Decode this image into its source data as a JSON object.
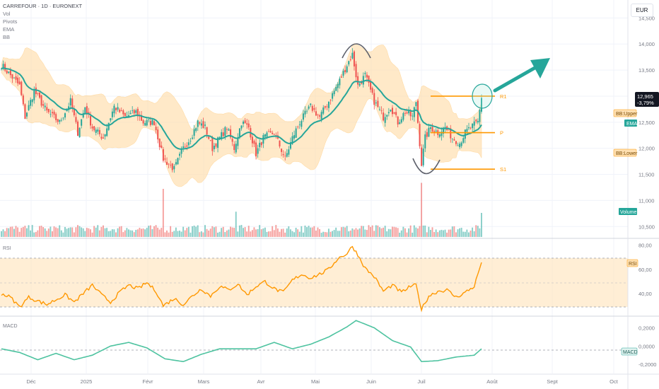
{
  "header": {
    "title": "CARREFOUR · 1D · EURONEXT",
    "indicators": [
      "Vol",
      "Pivots",
      "EMA",
      "BB"
    ],
    "currency": "EUR"
  },
  "price_label": {
    "price": "12,965",
    "change": "-3,79%"
  },
  "badges": {
    "bb_upper": "BB:Upper",
    "ema": "EMA",
    "bb_lower": "BB:Lower",
    "volume": "Volume",
    "rsi": "RSI",
    "macd": "MACD"
  },
  "panes": {
    "rsi_title": "RSI",
    "macd_title": "MACD"
  },
  "pivots": [
    {
      "label": "R1",
      "value": 13.0
    },
    {
      "label": "P",
      "value": 12.3
    },
    {
      "label": "S1",
      "value": 11.6
    }
  ],
  "colors": {
    "up": "#26a69a",
    "down": "#ef5350",
    "ema": "#26a69a",
    "bb_fill": "#ffe0b2",
    "rsi": "#ff9800",
    "macd": "#4ec3a0",
    "pivot": "#ff9800",
    "arrow": "#26a69a"
  },
  "annotations": {
    "arch_top": "arc-over-may-high",
    "arch_bottom": "arc-under-july-low",
    "circle": "circle-at-breakout",
    "arrow": "arrow-up-right"
  },
  "chart_data": {
    "type": "candlestick",
    "series_name": "CARREFOUR",
    "x_labels": [
      "Déc",
      "2025",
      "Févr",
      "Mars",
      "Avr",
      "Mai",
      "Juin",
      "Juil",
      "Août",
      "Sept",
      "Oct"
    ],
    "price_axis": {
      "ticks": [
        "14,500",
        "14,000",
        "13,500",
        "13,000",
        "12,500",
        "12,000",
        "11,500",
        "11,000",
        "10,500"
      ],
      "range": [
        10.3,
        14.6
      ]
    },
    "rsi_axis": {
      "ticks": [
        "80,00",
        "60,00",
        "40,00"
      ],
      "range": [
        22,
        85
      ],
      "overbought": 70,
      "oversold": 30
    },
    "macd_axis": {
      "ticks": [
        "0,2000",
        "0,0000",
        "-0,2000"
      ],
      "range": [
        -0.3,
        0.32
      ]
    },
    "close_anchors": [
      [
        0,
        13.6
      ],
      [
        5,
        13.4
      ],
      [
        10,
        13.2
      ],
      [
        13,
        12.6
      ],
      [
        18,
        13.1
      ],
      [
        25,
        12.7
      ],
      [
        32,
        12.5
      ],
      [
        38,
        12.9
      ],
      [
        42,
        12.3
      ],
      [
        46,
        12.8
      ],
      [
        50,
        12.4
      ],
      [
        56,
        12.2
      ],
      [
        62,
        12.8
      ],
      [
        68,
        12.6
      ],
      [
        74,
        12.7
      ],
      [
        78,
        12.5
      ],
      [
        84,
        12.5
      ],
      [
        89,
        11.8
      ],
      [
        95,
        11.6
      ],
      [
        100,
        12.0
      ],
      [
        104,
        12.2
      ],
      [
        108,
        12.5
      ],
      [
        112,
        12.4
      ],
      [
        116,
        12.0
      ],
      [
        120,
        12.2
      ],
      [
        124,
        12.4
      ],
      [
        128,
        12.0
      ],
      [
        132,
        12.5
      ],
      [
        136,
        12.4
      ],
      [
        140,
        11.9
      ],
      [
        144,
        12.2
      ],
      [
        150,
        12.3
      ],
      [
        156,
        11.8
      ],
      [
        160,
        12.2
      ],
      [
        164,
        12.5
      ],
      [
        170,
        12.8
      ],
      [
        175,
        12.6
      ],
      [
        180,
        12.9
      ],
      [
        186,
        13.3
      ],
      [
        190,
        13.6
      ],
      [
        193,
        13.8
      ],
      [
        196,
        13.2
      ],
      [
        200,
        13.4
      ],
      [
        205,
        12.9
      ],
      [
        210,
        12.6
      ],
      [
        214,
        12.8
      ],
      [
        218,
        12.5
      ],
      [
        222,
        12.7
      ],
      [
        226,
        12.6
      ],
      [
        228,
        12.9
      ],
      [
        231,
        11.7
      ],
      [
        233,
        12.2
      ],
      [
        236,
        12.4
      ],
      [
        240,
        12.3
      ],
      [
        244,
        12.4
      ],
      [
        248,
        12.2
      ],
      [
        252,
        12.1
      ],
      [
        255,
        12.3
      ],
      [
        258,
        12.4
      ],
      [
        262,
        12.5
      ],
      [
        264,
        12.96
      ]
    ],
    "volume_spikes": [
      {
        "index": 89,
        "relative": 4.0
      },
      {
        "index": 129,
        "relative": 2.1
      },
      {
        "index": 231,
        "relative": 4.5
      },
      {
        "index": 264,
        "relative": 2.0
      }
    ],
    "rsi_anchors": [
      [
        0,
        40
      ],
      [
        5,
        37
      ],
      [
        10,
        29
      ],
      [
        15,
        37
      ],
      [
        20,
        34
      ],
      [
        25,
        31
      ],
      [
        30,
        35
      ],
      [
        35,
        39
      ],
      [
        40,
        33
      ],
      [
        45,
        40
      ],
      [
        50,
        47
      ],
      [
        55,
        39
      ],
      [
        60,
        33
      ],
      [
        65,
        41
      ],
      [
        70,
        47
      ],
      [
        75,
        44
      ],
      [
        80,
        49
      ],
      [
        85,
        42
      ],
      [
        89,
        30
      ],
      [
        95,
        36
      ],
      [
        100,
        31
      ],
      [
        105,
        38
      ],
      [
        110,
        44
      ],
      [
        115,
        38
      ],
      [
        120,
        46
      ],
      [
        125,
        43
      ],
      [
        130,
        48
      ],
      [
        135,
        39
      ],
      [
        140,
        46
      ],
      [
        145,
        50
      ],
      [
        150,
        44
      ],
      [
        155,
        41
      ],
      [
        160,
        51
      ],
      [
        165,
        56
      ],
      [
        170,
        53
      ],
      [
        175,
        56
      ],
      [
        180,
        60
      ],
      [
        185,
        69
      ],
      [
        190,
        73
      ],
      [
        193,
        79
      ],
      [
        196,
        72
      ],
      [
        200,
        61
      ],
      [
        205,
        54
      ],
      [
        210,
        42
      ],
      [
        215,
        47
      ],
      [
        220,
        41
      ],
      [
        225,
        46
      ],
      [
        228,
        47
      ],
      [
        231,
        27
      ],
      [
        235,
        38
      ],
      [
        240,
        42
      ],
      [
        245,
        43
      ],
      [
        250,
        37
      ],
      [
        255,
        41
      ],
      [
        260,
        46
      ],
      [
        264,
        66
      ]
    ],
    "macd_anchors": [
      [
        0,
        -0.03
      ],
      [
        10,
        -0.07
      ],
      [
        20,
        -0.15
      ],
      [
        30,
        -0.08
      ],
      [
        40,
        -0.15
      ],
      [
        50,
        -0.1
      ],
      [
        60,
        0.0
      ],
      [
        70,
        0.04
      ],
      [
        80,
        -0.02
      ],
      [
        90,
        -0.14
      ],
      [
        100,
        -0.17
      ],
      [
        110,
        -0.09
      ],
      [
        120,
        -0.03
      ],
      [
        130,
        -0.03
      ],
      [
        140,
        -0.03
      ],
      [
        150,
        0.04
      ],
      [
        160,
        -0.03
      ],
      [
        170,
        0.02
      ],
      [
        180,
        0.1
      ],
      [
        190,
        0.21
      ],
      [
        195,
        0.28
      ],
      [
        205,
        0.2
      ],
      [
        215,
        0.06
      ],
      [
        225,
        -0.01
      ],
      [
        231,
        -0.17
      ],
      [
        240,
        -0.16
      ],
      [
        250,
        -0.12
      ],
      [
        260,
        -0.1
      ],
      [
        264,
        -0.03
      ]
    ]
  }
}
